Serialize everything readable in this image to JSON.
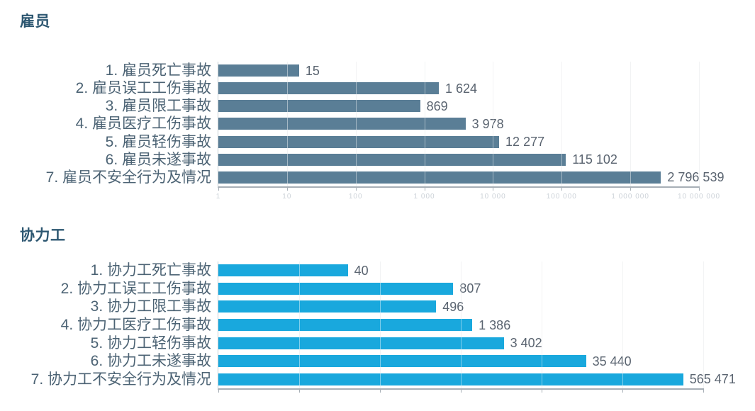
{
  "colors": {
    "title": "#2D5771",
    "category_label": "#4C6374",
    "value_label": "#5A6470",
    "gridline": "#E7E9EB",
    "axis_line": "#A7AFB6",
    "tick_label": "#CCD2D8",
    "employee_bar": "#5A7E96",
    "contractor_bar": "#19A8DD"
  },
  "chart_data": [
    {
      "type": "bar",
      "orientation": "horizontal",
      "title": "雇员",
      "categories": [
        "1. 雇员死亡事故",
        "2. 雇员误工工伤事故",
        "3. 雇员限工事故",
        "4. 雇员医疗工伤事故",
        "5. 雇员轻伤事故",
        "6. 雇员未遂事故",
        "7. 雇员不安全行为及情况"
      ],
      "values": [
        15,
        1624,
        869,
        3978,
        12277,
        115102,
        2796539
      ],
      "value_labels": [
        "15",
        "1 624",
        "869",
        "3 978",
        "12 277",
        "115 102",
        "2 796 539"
      ],
      "xscale": "log",
      "xlim": [
        1,
        10000000
      ],
      "xtick_labels": [
        "1",
        "10",
        "100",
        "1 000",
        "10 000",
        "100 000",
        "1 000 000",
        "10 000 000"
      ],
      "grid": true,
      "legend": false,
      "bar_color": "#5A7E96"
    },
    {
      "type": "bar",
      "orientation": "horizontal",
      "title": "协力工",
      "categories": [
        "1. 协力工死亡事故",
        "2. 协力工误工工伤事故",
        "3. 协力工限工事故",
        "4. 协力工医疗工伤事故",
        "5. 协力工轻伤事故",
        "6. 协力工未遂事故",
        "7. 协力工不安全行为及情况"
      ],
      "values": [
        40,
        807,
        496,
        1386,
        3402,
        35440,
        565471
      ],
      "value_labels": [
        "40",
        "807",
        "496",
        "1 386",
        "3 402",
        "35 440",
        "565 471"
      ],
      "xscale": "log",
      "xlim": [
        1,
        1000000
      ],
      "xtick_labels": [],
      "grid": true,
      "legend": false,
      "bar_color": "#19A8DD"
    }
  ]
}
